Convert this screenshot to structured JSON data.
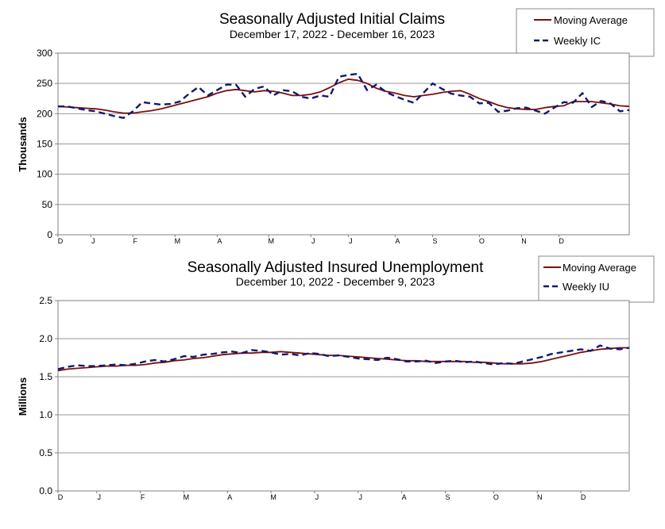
{
  "chart_data": [
    {
      "type": "line",
      "title": "Seasonally Adjusted Initial Claims",
      "subtitle": "December 17, 2022 - December 16, 2023",
      "ylabel": "Thousands",
      "xlabel": "",
      "ylim": [
        0,
        300
      ],
      "yticks": [
        "0",
        "50",
        "100",
        "150",
        "200",
        "250",
        "300"
      ],
      "month_labels": [
        "D",
        "J",
        "F",
        "M",
        "A",
        "M",
        "J",
        "J",
        "A",
        "S",
        "O",
        "N",
        "D"
      ],
      "month_index": [
        0,
        3.5,
        8,
        12.5,
        17,
        22.5,
        27,
        31,
        36,
        40,
        45,
        49.5,
        53.5
      ],
      "legend": [
        "Moving Average",
        "Weekly IC"
      ],
      "series": [
        {
          "name": "Moving Average",
          "color": "#7a0f0f",
          "style": "solid",
          "values": [
            212,
            211,
            210,
            209,
            208,
            206,
            203,
            201,
            201,
            203,
            205,
            208,
            212,
            216,
            220,
            224,
            228,
            234,
            238,
            240,
            238,
            236,
            238,
            237,
            234,
            230,
            230,
            232,
            236,
            243,
            251,
            257,
            255,
            250,
            242,
            237,
            234,
            230,
            228,
            230,
            232,
            235,
            237,
            238,
            232,
            225,
            220,
            214,
            210,
            208,
            207,
            207,
            210,
            212,
            213,
            220,
            220,
            220,
            218,
            216,
            213,
            212
          ]
        },
        {
          "name": "Weekly IC",
          "color": "#0f1a6e",
          "style": "dashed",
          "values": [
            212,
            212,
            209,
            206,
            204,
            200,
            196,
            193,
            204,
            219,
            217,
            215,
            216,
            220,
            233,
            244,
            230,
            239,
            248,
            248,
            228,
            241,
            245,
            230,
            239,
            237,
            228,
            225,
            230,
            228,
            261,
            264,
            266,
            239,
            248,
            236,
            229,
            223,
            218,
            234,
            250,
            241,
            233,
            230,
            228,
            217,
            218,
            203,
            205,
            209,
            210,
            205,
            200,
            210,
            219,
            218,
            234,
            211,
            221,
            217,
            204,
            206
          ]
        }
      ]
    },
    {
      "type": "line",
      "title": "Seasonally Adjusted Insured Unemployment",
      "subtitle": "December 10, 2022 - December 9, 2023",
      "ylabel": "Millions",
      "xlabel": "",
      "ylim": [
        0,
        2.5
      ],
      "yticks": [
        "0.0",
        "0.5",
        "1.0",
        "1.5",
        "2.0",
        "2.5"
      ],
      "month_labels": [
        "D",
        "J",
        "F",
        "M",
        "A",
        "M",
        "J",
        "J",
        "A",
        "S",
        "O",
        "N",
        "D"
      ],
      "month_index": [
        0,
        4,
        8.5,
        13,
        17.5,
        22,
        26.5,
        31,
        35.5,
        40,
        45,
        49.5,
        54
      ],
      "legend": [
        "Moving Average",
        "Weekly IU"
      ],
      "series": [
        {
          "name": "Moving Average",
          "color": "#7a0f0f",
          "style": "solid",
          "values": [
            1.58,
            1.6,
            1.61,
            1.62,
            1.63,
            1.64,
            1.64,
            1.65,
            1.65,
            1.66,
            1.68,
            1.69,
            1.71,
            1.72,
            1.74,
            1.75,
            1.77,
            1.79,
            1.8,
            1.81,
            1.81,
            1.82,
            1.82,
            1.83,
            1.82,
            1.81,
            1.8,
            1.79,
            1.78,
            1.78,
            1.77,
            1.76,
            1.75,
            1.74,
            1.73,
            1.72,
            1.71,
            1.71,
            1.7,
            1.7,
            1.7,
            1.7,
            1.7,
            1.69,
            1.69,
            1.68,
            1.67,
            1.67,
            1.67,
            1.68,
            1.7,
            1.73,
            1.76,
            1.79,
            1.82,
            1.84,
            1.86,
            1.87,
            1.88,
            1.88
          ]
        },
        {
          "name": "Weekly IU",
          "color": "#0f1a6e",
          "style": "dashed",
          "values": [
            1.6,
            1.63,
            1.65,
            1.64,
            1.64,
            1.65,
            1.66,
            1.65,
            1.67,
            1.7,
            1.72,
            1.7,
            1.73,
            1.77,
            1.76,
            1.79,
            1.8,
            1.82,
            1.83,
            1.81,
            1.85,
            1.84,
            1.82,
            1.79,
            1.8,
            1.78,
            1.81,
            1.8,
            1.77,
            1.78,
            1.76,
            1.74,
            1.73,
            1.72,
            1.75,
            1.73,
            1.7,
            1.7,
            1.71,
            1.68,
            1.7,
            1.71,
            1.69,
            1.7,
            1.68,
            1.66,
            1.68,
            1.67,
            1.7,
            1.73,
            1.76,
            1.8,
            1.82,
            1.84,
            1.86,
            1.84,
            1.91,
            1.87,
            1.86,
            1.88
          ]
        }
      ]
    }
  ]
}
